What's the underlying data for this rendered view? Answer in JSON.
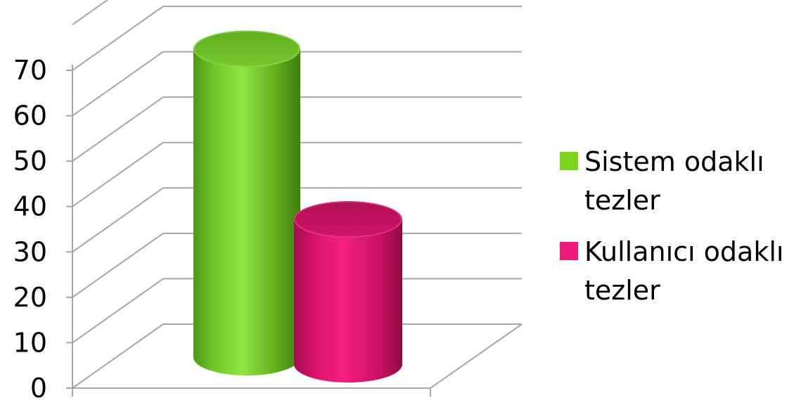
{
  "chart_data": {
    "type": "bar",
    "style": "3d-cylinder",
    "title": "",
    "xlabel": "",
    "ylabel": "",
    "ylim": [
      0,
      70
    ],
    "yticks": [
      0,
      10,
      20,
      30,
      40,
      50,
      60,
      70
    ],
    "ytick_labels": [
      "0",
      "10",
      "20",
      "30",
      "40",
      "50",
      "60",
      "70"
    ],
    "grid": true,
    "legend": {
      "placement": "right",
      "entries": [
        {
          "lines": [
            "Sistem odaklı",
            "tezler"
          ],
          "color": "#7ed321"
        },
        {
          "lines": [
            "Kullanıcı odaklı",
            "tezler"
          ],
          "color": "#ed1c7c"
        }
      ]
    },
    "series": [
      {
        "value": 71,
        "color": "#7ed321"
      },
      {
        "value": 35,
        "color": "#ed1c7c"
      }
    ]
  }
}
